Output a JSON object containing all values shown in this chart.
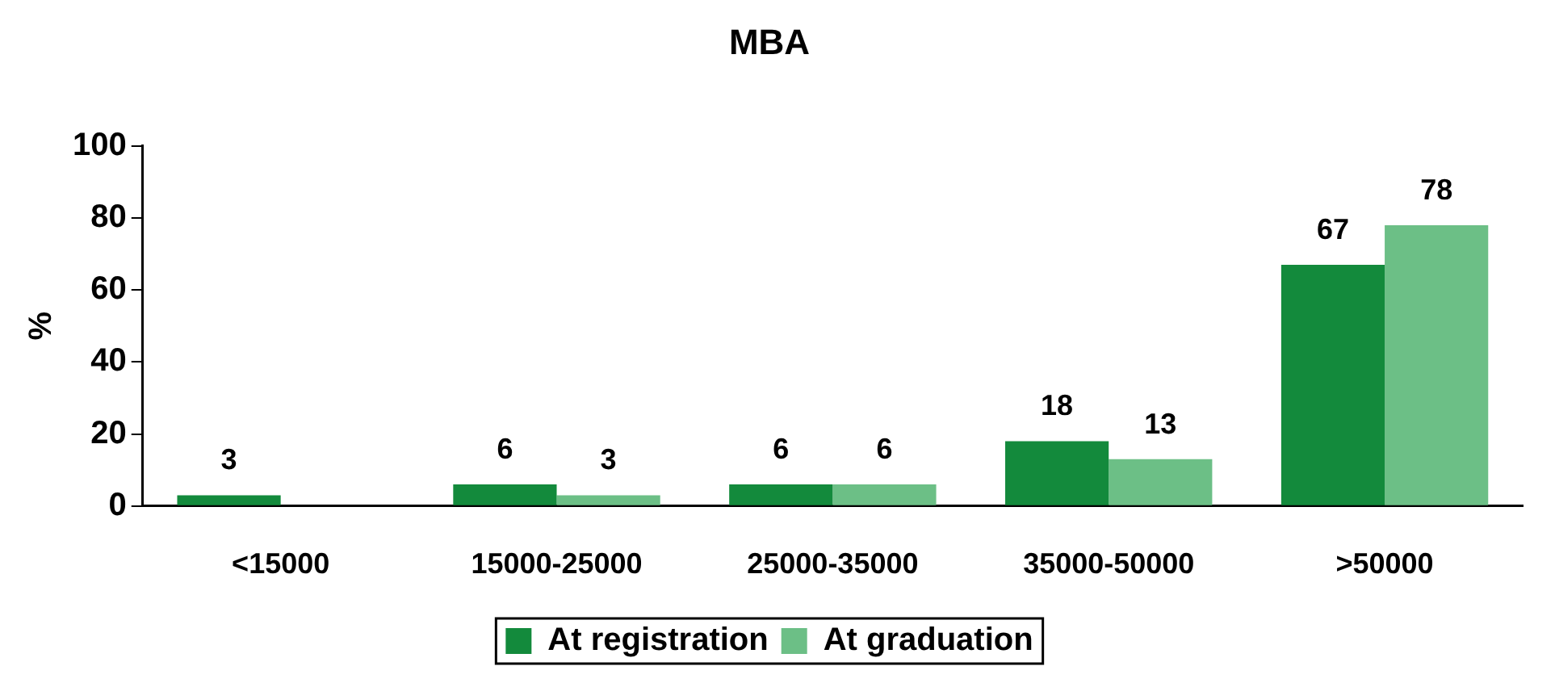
{
  "chart_data": {
    "type": "bar",
    "title": "MBA",
    "ylabel": "%",
    "categories": [
      "<15000",
      "15000-25000",
      "25000-35000",
      "35000-50000",
      ">50000"
    ],
    "series": [
      {
        "name": "At registration",
        "color": "#138a3c",
        "values": [
          3,
          6,
          6,
          18,
          67
        ]
      },
      {
        "name": "At graduation",
        "color": "#6cbf86",
        "values": [
          null,
          3,
          6,
          13,
          78
        ]
      }
    ],
    "ylim": [
      0,
      100
    ],
    "yticks": [
      0,
      20,
      40,
      60,
      80,
      100
    ],
    "grid": false,
    "legend": "bottom",
    "data_labels": true
  }
}
